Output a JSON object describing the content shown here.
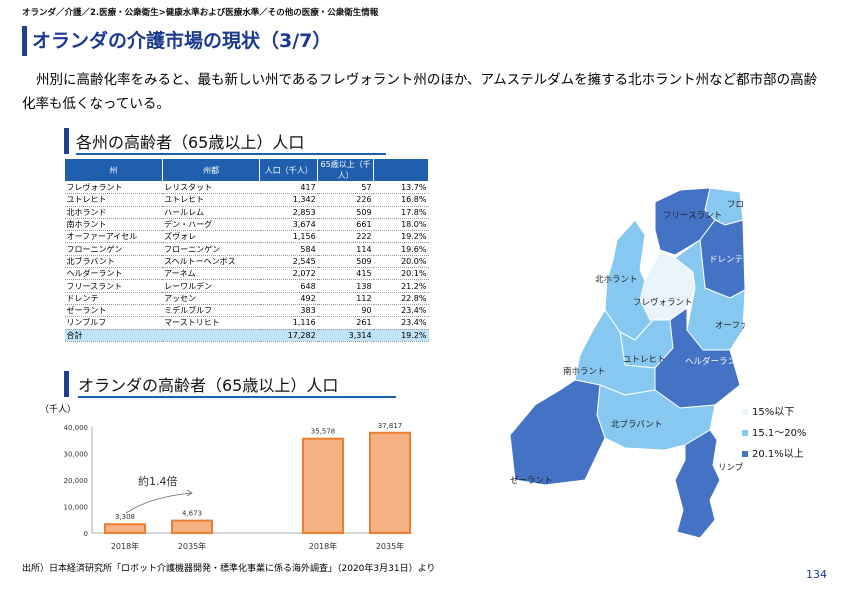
{
  "breadcrumb": "オランダ／介護／2.医療・公衆衛生>健康水準および医療水準／その他の医療・公衆衛生情報",
  "title": "オランダの介護市場の現状（3/7）",
  "lead": "州別に高齢化率をみると、最も新しい州であるフレヴォラント州のほか、アムステルダムを擁する北ホラント州など都市部の高齢化率も低くなっている。",
  "section1": "各州の高齢者（65歳以上）人口",
  "section2": "オランダの高齢者（65歳以上）人口",
  "table": {
    "headers": [
      "州",
      "州都",
      "人口（千人）",
      "65歳以上（千人）",
      ""
    ],
    "rows": [
      [
        "フレヴォラント",
        "レリスタット",
        "417",
        "57",
        "13.7%"
      ],
      [
        "ユトレヒト",
        "ユトレヒト",
        "1,342",
        "226",
        "16.8%"
      ],
      [
        "北ホランド",
        "ハールレム",
        "2,853",
        "509",
        "17.8%"
      ],
      [
        "南ホラント",
        "デン・ハーグ",
        "3,674",
        "661",
        "18.0%"
      ],
      [
        "オーファーアイセル",
        "ズヴォレ",
        "1,156",
        "222",
        "19.2%"
      ],
      [
        "フローニンゲン",
        "フローニンゲン",
        "584",
        "114",
        "19.6%"
      ],
      [
        "北ブラバント",
        "スヘルトーヘンボス",
        "2,545",
        "509",
        "20.0%"
      ],
      [
        "ヘルダーラント",
        "アーネム",
        "2,072",
        "415",
        "20.1%"
      ],
      [
        "フリースラント",
        "レーワルデン",
        "648",
        "138",
        "21.2%"
      ],
      [
        "ドレンテ",
        "アッセン",
        "492",
        "112",
        "22.8%"
      ],
      [
        "ゼーラント",
        "ミデルブルフ",
        "383",
        "90",
        "23.4%"
      ],
      [
        "リンブルフ",
        "マーストリヒト",
        "1,116",
        "261",
        "23.4%"
      ]
    ],
    "total": [
      "合計",
      "",
      "17,282",
      "3,314",
      "19.2%"
    ]
  },
  "chart_unit": "（千人）",
  "ratio_label": "約1.4倍",
  "chart_data": {
    "type": "bar",
    "categories": [
      "2018年",
      "2035年",
      "2018年",
      "2035年"
    ],
    "values": [
      3308,
      4673,
      35578,
      37817
    ],
    "value_labels": [
      "3,308",
      "4,673",
      "35,578",
      "37,817"
    ],
    "ylim": [
      0,
      40000
    ],
    "yticks": [
      "0",
      "10,000",
      "20,000",
      "30,000",
      "40,000"
    ],
    "bar_color": "#f5b183",
    "bar_border": "#ed7d31",
    "grid": false
  },
  "map": {
    "labels": {
      "groningen": "フローニンゲン",
      "friesland": "フリースラント",
      "drenthe": "ドレンテ",
      "noord_holland": "北ホラント",
      "flevoland": "フレヴォラント",
      "overijssel": "オーファーアイセル",
      "utrecht": "ユトレヒト",
      "gelderland": "ヘルダーラント",
      "zuid_holland": "南ホラント",
      "noord_brabant": "北ブラバント",
      "zeeland": "ゼーラント",
      "limburg": "リンブ"
    },
    "colors": {
      "low": "#eaf4fb",
      "mid": "#86c8f0",
      "high": "#4472c4"
    },
    "legend": [
      "15%以下",
      "15.1～20%",
      "20.1%以上"
    ]
  },
  "source": "出所）日本経済研究所「ロボット介護機器開発・標準化事業に係る海外調査」（2020年3月31日）より",
  "page_number": "134"
}
